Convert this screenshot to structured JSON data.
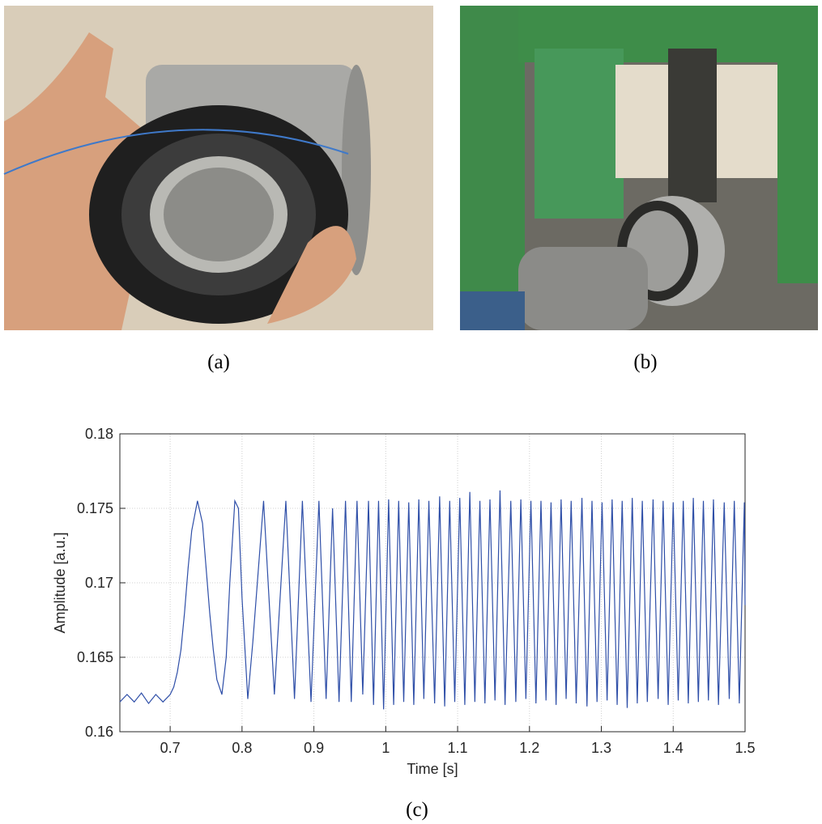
{
  "captions": [
    "(a)",
    "(b)",
    "(c)"
  ],
  "chart_data": {
    "type": "line",
    "xlabel": "Time [s]",
    "ylabel": "Amplitude [a.u.]",
    "color": "#2f4fa8",
    "grid": true,
    "xlim": [
      0.63,
      1.5
    ],
    "ylim": [
      0.16,
      0.18
    ],
    "xticks": [
      0.7,
      0.8,
      0.9,
      1,
      1.1,
      1.2,
      1.3,
      1.4,
      1.5
    ],
    "yticks": [
      0.16,
      0.165,
      0.17,
      0.175,
      0.18
    ],
    "x": [
      0.63,
      0.64,
      0.65,
      0.66,
      0.67,
      0.68,
      0.69,
      0.7,
      0.705,
      0.71,
      0.715,
      0.72,
      0.725,
      0.73,
      0.738,
      0.745,
      0.75,
      0.755,
      0.76,
      0.765,
      0.772,
      0.778,
      0.783,
      0.79,
      0.795,
      0.8,
      0.808,
      0.815,
      0.83,
      0.845,
      0.861,
      0.873,
      0.884,
      0.896,
      0.907,
      0.917,
      0.926,
      0.935,
      0.944,
      0.952,
      0.96,
      0.968,
      0.976,
      0.983,
      0.99,
      0.997,
      1.004,
      1.011,
      1.018,
      1.025,
      1.032,
      1.039,
      1.046,
      1.053,
      1.06,
      1.068,
      1.075,
      1.082,
      1.089,
      1.096,
      1.103,
      1.11,
      1.117,
      1.124,
      1.131,
      1.138,
      1.145,
      1.152,
      1.159,
      1.166,
      1.174,
      1.181,
      1.188,
      1.195,
      1.202,
      1.209,
      1.216,
      1.223,
      1.23,
      1.237,
      1.244,
      1.251,
      1.258,
      1.265,
      1.273,
      1.28,
      1.287,
      1.294,
      1.301,
      1.308,
      1.315,
      1.322,
      1.329,
      1.336,
      1.343,
      1.35,
      1.357,
      1.364,
      1.372,
      1.379,
      1.386,
      1.393,
      1.4,
      1.407,
      1.414,
      1.421,
      1.428,
      1.435,
      1.442,
      1.449,
      1.456,
      1.463,
      1.471,
      1.478,
      1.485,
      1.492,
      1.499,
      1.5
    ],
    "values": [
      0.162,
      0.1625,
      0.162,
      0.1626,
      0.1619,
      0.1625,
      0.162,
      0.1625,
      0.163,
      0.164,
      0.1655,
      0.168,
      0.171,
      0.1735,
      0.1755,
      0.174,
      0.171,
      0.168,
      0.1655,
      0.1635,
      0.1625,
      0.165,
      0.17,
      0.1755,
      0.175,
      0.169,
      0.1622,
      0.166,
      0.1755,
      0.1625,
      0.1755,
      0.1622,
      0.1755,
      0.162,
      0.1755,
      0.1622,
      0.175,
      0.162,
      0.1755,
      0.162,
      0.1755,
      0.1625,
      0.1755,
      0.1618,
      0.1755,
      0.1615,
      0.1756,
      0.1618,
      0.1755,
      0.162,
      0.1754,
      0.1618,
      0.1756,
      0.1622,
      0.1755,
      0.1619,
      0.1758,
      0.1617,
      0.1755,
      0.162,
      0.1757,
      0.1618,
      0.1761,
      0.162,
      0.1755,
      0.1619,
      0.1756,
      0.1621,
      0.1762,
      0.1618,
      0.1755,
      0.162,
      0.1756,
      0.1622,
      0.1755,
      0.1619,
      0.1755,
      0.1621,
      0.1754,
      0.1618,
      0.1756,
      0.1622,
      0.1755,
      0.1619,
      0.1757,
      0.1617,
      0.1755,
      0.162,
      0.1754,
      0.1621,
      0.1756,
      0.1618,
      0.1755,
      0.1616,
      0.1757,
      0.1619,
      0.1755,
      0.162,
      0.1756,
      0.1622,
      0.1755,
      0.1618,
      0.1754,
      0.1621,
      0.1755,
      0.1619,
      0.1757,
      0.162,
      0.1755,
      0.1621,
      0.1756,
      0.1618,
      0.1754,
      0.1622,
      0.1755,
      0.1619,
      0.1754,
      0.1685
    ]
  }
}
